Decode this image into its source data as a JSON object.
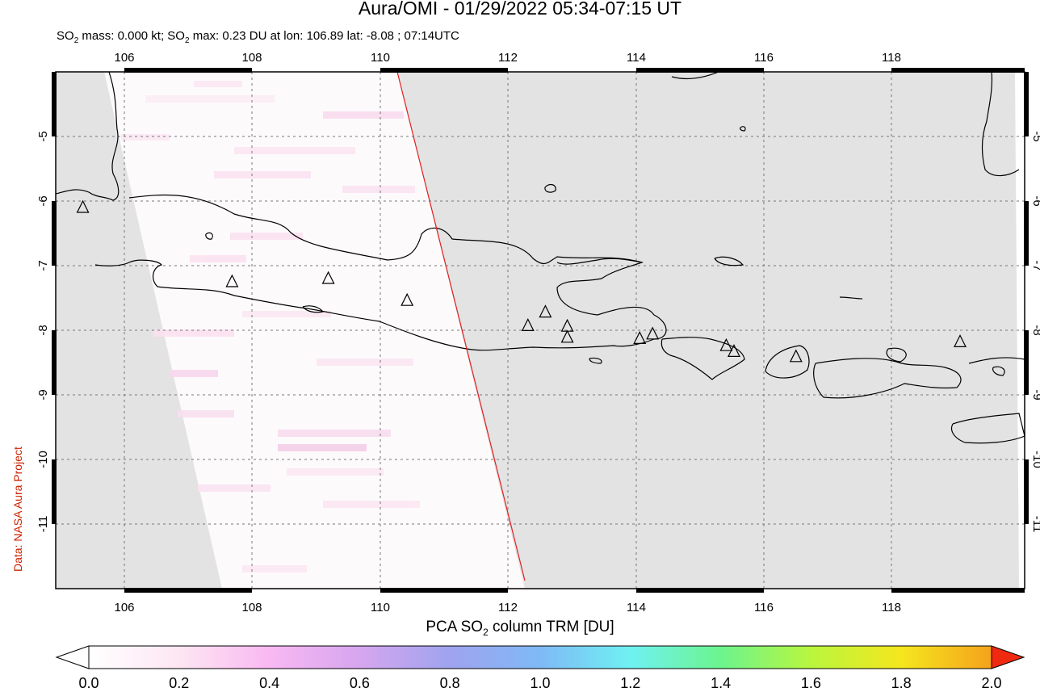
{
  "title": "Aura/OMI - 01/29/2022 05:34-07:15 UT",
  "subtitle": {
    "prefix": "SO",
    "sub1": "2",
    "mid1": " mass: 0.000 kt; SO",
    "sub2": "2",
    "rest": " max: 0.23 DU at lon: 106.89 lat: -8.08 ; 07:14UTC"
  },
  "credit": "Data: NASA Aura Project",
  "map": {
    "lon_range": [
      105,
      120
    ],
    "lat_range": [
      -12,
      -4
    ],
    "lon_ticks": [
      "106",
      "108",
      "110",
      "112",
      "114",
      "116",
      "118"
    ],
    "lat_ticks": [
      "-5",
      "-6",
      "-7",
      "-8",
      "-9",
      "-10",
      "-11"
    ],
    "no_data_color": "#e3e3e3",
    "coast_color": "#000000",
    "orbit_line_color": "#dd2222",
    "volcano_marker": "triangle",
    "volcanoes": [
      {
        "lon": 105.42,
        "lat": -6.1
      },
      {
        "lon": 107.73,
        "lat": -7.25
      },
      {
        "lon": 109.22,
        "lat": -7.2
      },
      {
        "lon": 110.44,
        "lat": -7.54
      },
      {
        "lon": 112.31,
        "lat": -7.93
      },
      {
        "lon": 112.58,
        "lat": -7.72
      },
      {
        "lon": 112.92,
        "lat": -7.94
      },
      {
        "lon": 112.92,
        "lat": -8.11
      },
      {
        "lon": 114.04,
        "lat": -8.13
      },
      {
        "lon": 114.24,
        "lat": -8.06
      },
      {
        "lon": 115.38,
        "lat": -8.24
      },
      {
        "lon": 115.5,
        "lat": -8.33
      },
      {
        "lon": 116.46,
        "lat": -8.41
      },
      {
        "lon": 119.0,
        "lat": -8.18
      }
    ]
  },
  "colorbar": {
    "title_prefix": "PCA SO",
    "title_sub": "2",
    "title_suffix": " column TRM [DU]",
    "labels": [
      "0.0",
      "0.2",
      "0.4",
      "0.6",
      "0.8",
      "1.0",
      "1.2",
      "1.4",
      "1.6",
      "1.8",
      "2.0"
    ],
    "colors": [
      "#ffffff",
      "#fde6f2",
      "#f9b8f2",
      "#d6a6ef",
      "#9fa3ef",
      "#7fb9f6",
      "#6ff1f2",
      "#6cf48e",
      "#b9f63e",
      "#f5e61e",
      "#f5a21c",
      "#f02a10"
    ]
  }
}
